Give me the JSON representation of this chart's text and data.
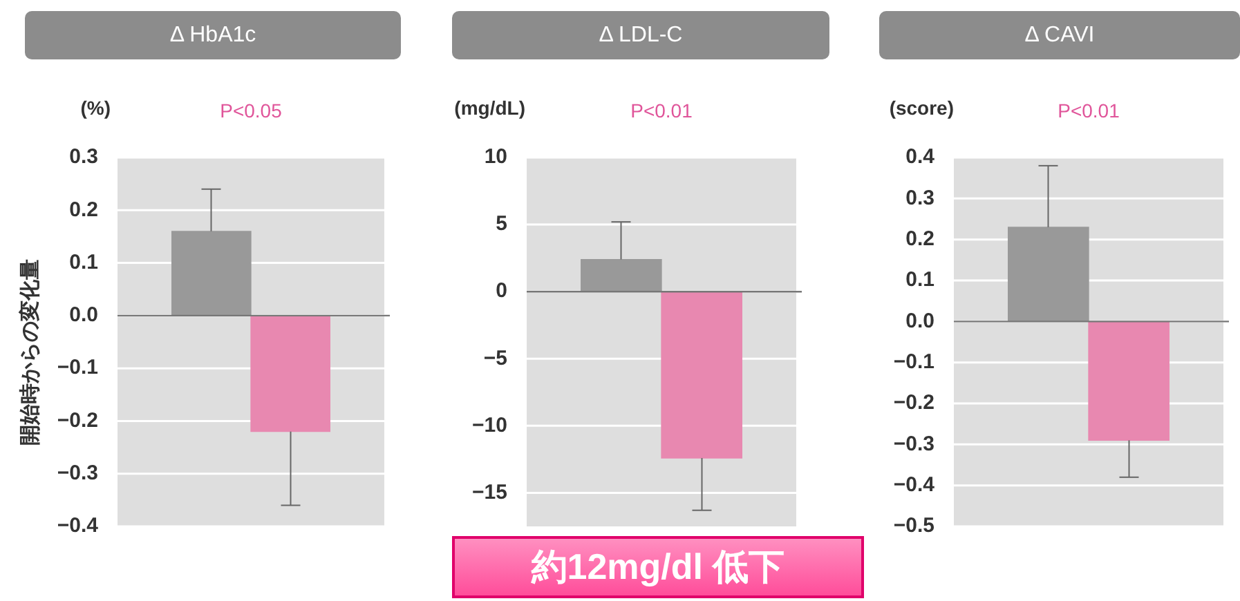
{
  "chart_data": [
    {
      "type": "bar",
      "title": "Δ HbA1c",
      "subtitle": "P<0.05",
      "ylabel": "(%)",
      "categories": [
        null,
        null
      ],
      "values": [
        0.16,
        -0.22
      ],
      "colors": [
        "#999999",
        "#e888b0"
      ],
      "errors": [
        [
          0.16,
          0.24
        ],
        [
          -0.36,
          -0.22
        ]
      ],
      "ylim": [
        -0.4,
        0.3
      ],
      "yticks": [
        -0.4,
        -0.3,
        -0.2,
        -0.1,
        {
          "value": 0,
          "label": "0.0"
        },
        0.1,
        0.2,
        0.3
      ],
      "grid": "y",
      "annotations": [
        "開始時からの変化量"
      ]
    },
    {
      "type": "bar",
      "title": "Δ LDL-C",
      "subtitle": "P<0.01",
      "ylabel": "(mg/dL)",
      "categories": [
        null,
        null
      ],
      "values": [
        2.4,
        -12.4
      ],
      "colors": [
        "#999999",
        "#e888b0"
      ],
      "errors": [
        [
          2.4,
          5.2
        ],
        [
          -16.3,
          -12.4
        ]
      ],
      "ylim": [
        -17.5,
        10
      ],
      "yticks": [
        -15,
        -10,
        -5,
        0,
        5,
        10
      ],
      "grid": "y",
      "annotations": [
        "約12mg/dl 低下"
      ]
    },
    {
      "type": "bar",
      "title": "Δ CAVI",
      "subtitle": "P<0.01",
      "ylabel": "(score)",
      "categories": [
        null,
        null
      ],
      "values": [
        0.23,
        -0.29
      ],
      "colors": [
        "#999999",
        "#e888b0"
      ],
      "errors": [
        [
          0.23,
          0.38
        ],
        [
          -0.38,
          -0.29
        ]
      ],
      "ylim": [
        -0.5,
        0.4
      ],
      "yticks": [
        -0.5,
        -0.4,
        -0.3,
        -0.2,
        -0.1,
        {
          "value": 0,
          "label": "0.0"
        },
        0.1,
        0.2,
        0.3,
        0.4
      ],
      "grid": "y"
    }
  ]
}
